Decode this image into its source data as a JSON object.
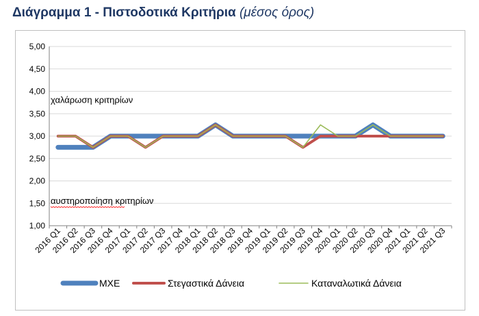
{
  "page": {
    "title": "Διάγραμμα 1 - Πιστοδοτικά Κριτήρια",
    "subtitle": "(μέσος όρος)"
  },
  "chart_data": {
    "type": "line",
    "categories": [
      "2016 Q1",
      "2016 Q2",
      "2016 Q3",
      "2016 Q4",
      "2017 Q1",
      "2017 Q2",
      "2017 Q3",
      "2017 Q4",
      "2018 Q1",
      "2018 Q2",
      "2018 Q3",
      "2018 Q4",
      "2019 Q1",
      "2019 Q2",
      "2019 Q3",
      "2019 Q4",
      "2020 Q1",
      "2020 Q2",
      "2020 Q3",
      "2020 Q4",
      "2021 Q1",
      "2021 Q2",
      "2021 Q3"
    ],
    "y_ticks": [
      "1,00",
      "1,50",
      "2,00",
      "2,50",
      "3,00",
      "3,50",
      "4,00",
      "4,50",
      "5,00"
    ],
    "ylim": [
      1,
      5
    ],
    "grid": "horizontal",
    "legend_position": "bottom",
    "annotations": [
      {
        "text": "χαλάρωση κριτηρίων",
        "y": 3.8
      },
      {
        "text": "αυστηροποίηση κριτηρίων",
        "y": 1.55
      }
    ],
    "series": [
      {
        "name": "ΜΧΕ",
        "color": "#4f81bd",
        "values": [
          2.75,
          2.75,
          2.75,
          3.0,
          3.0,
          3.0,
          3.0,
          3.0,
          3.0,
          3.25,
          3.0,
          3.0,
          3.0,
          3.0,
          3.0,
          3.0,
          3.0,
          3.0,
          3.25,
          3.0,
          3.0,
          3.0,
          3.0
        ]
      },
      {
        "name": "Στεγαστικά Δάνεια",
        "color": "#c0504d",
        "values": [
          3.0,
          3.0,
          2.75,
          3.0,
          3.0,
          2.75,
          3.0,
          3.0,
          3.0,
          3.25,
          3.0,
          3.0,
          3.0,
          3.0,
          2.75,
          3.0,
          3.0,
          3.0,
          3.0,
          3.0,
          3.0,
          3.0,
          3.0
        ]
      },
      {
        "name": "Καταναλωτικά Δάνεια",
        "color": "#9bbb59",
        "values": [
          3.0,
          3.0,
          2.75,
          3.0,
          3.0,
          2.75,
          3.0,
          3.0,
          3.0,
          3.25,
          3.0,
          3.0,
          3.0,
          3.0,
          2.75,
          3.25,
          3.0,
          3.0,
          3.25,
          3.0,
          3.0,
          3.0,
          3.0
        ]
      }
    ]
  }
}
